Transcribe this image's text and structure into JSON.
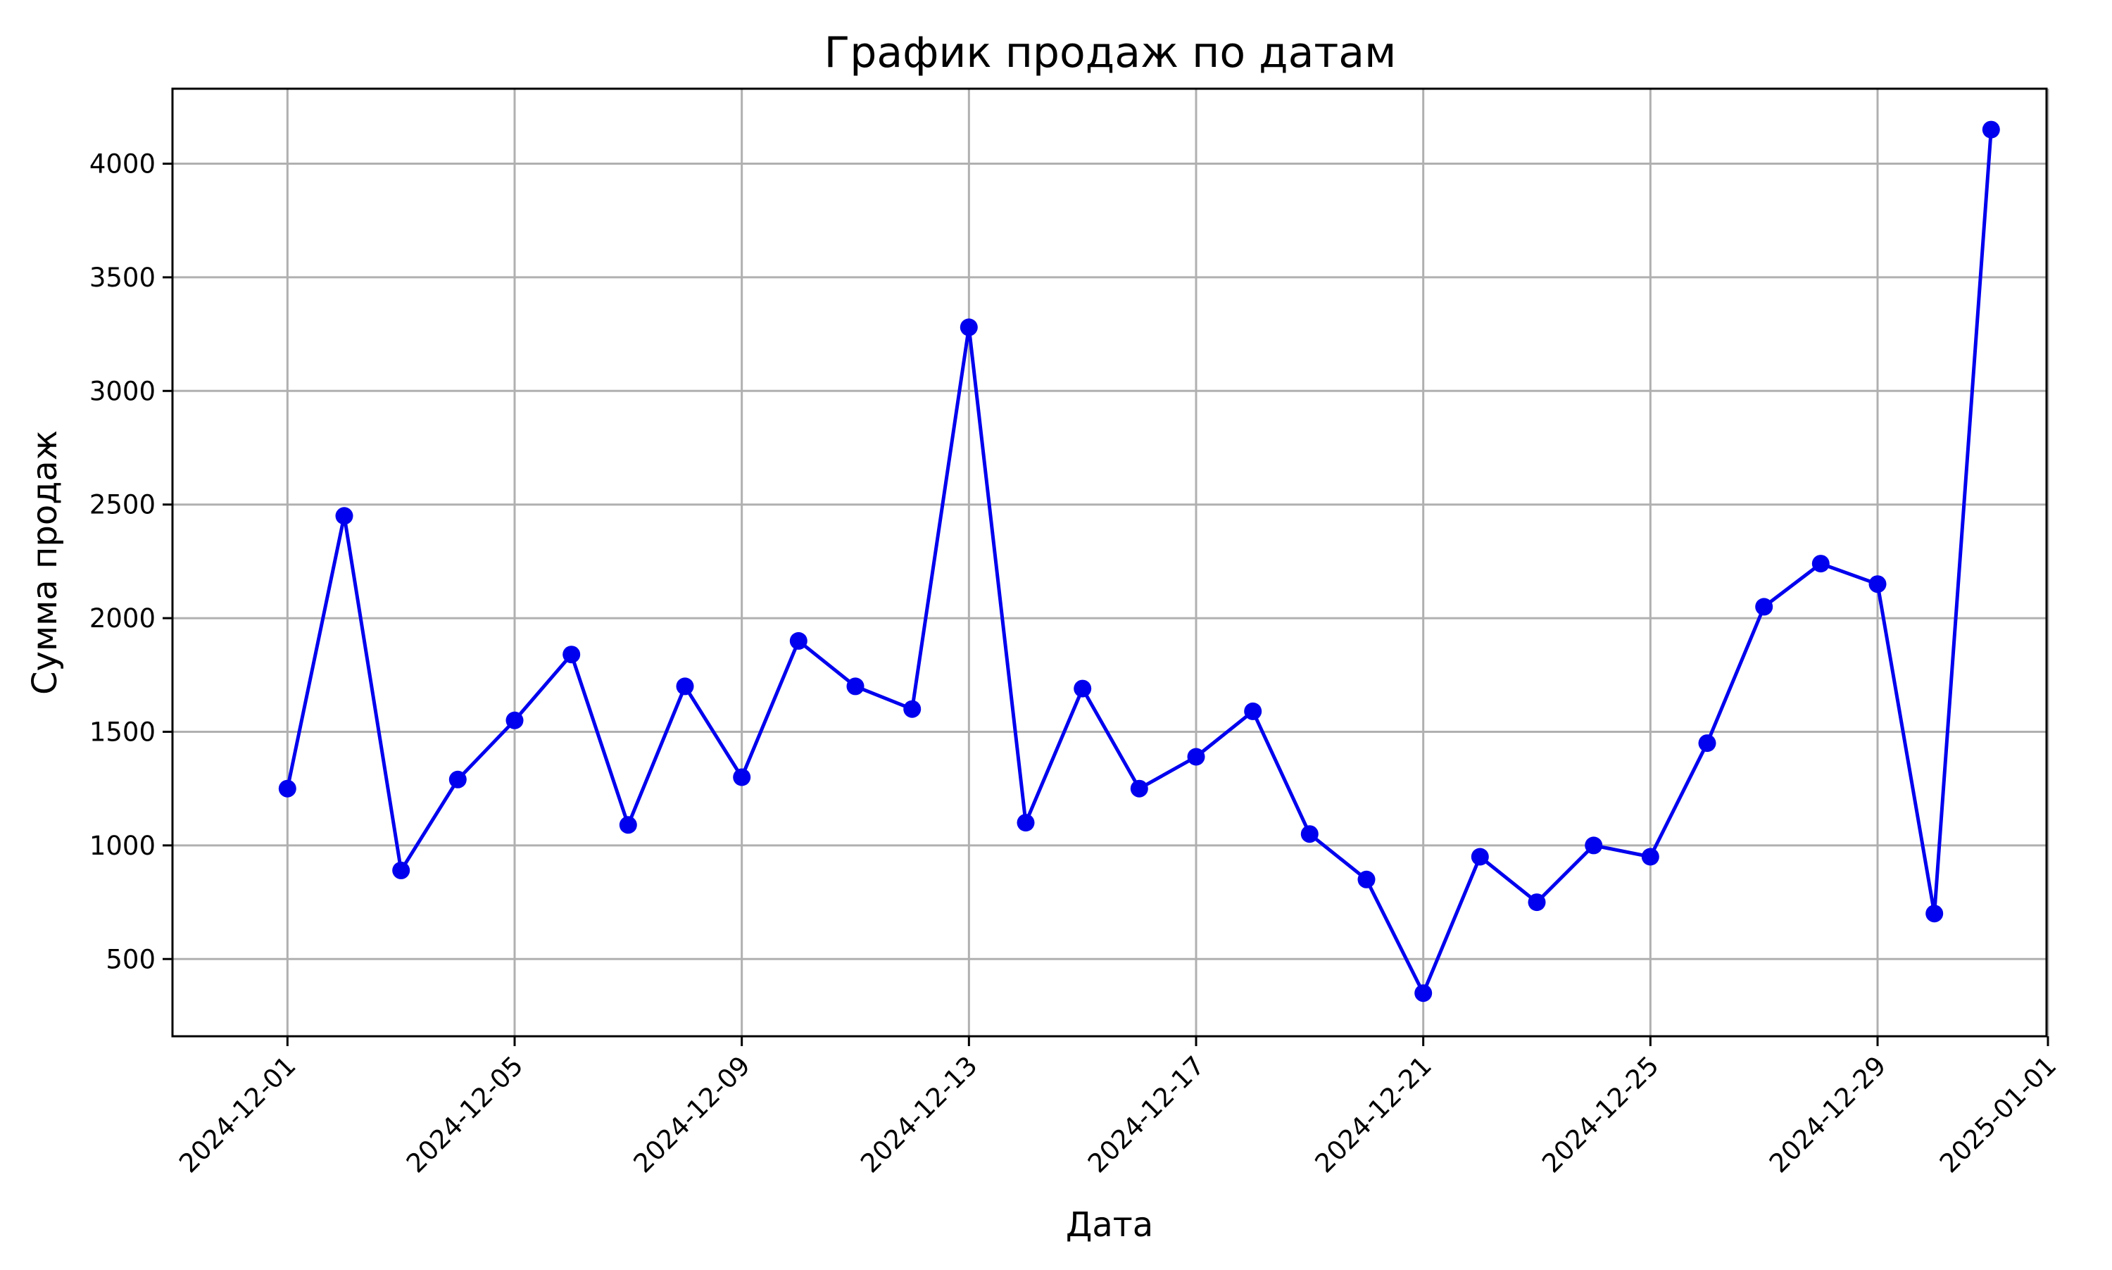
{
  "chart_data": {
    "type": "line",
    "title": "График продаж по датам",
    "xlabel": "Дата",
    "ylabel": "Сумма продаж",
    "x_ticks": [
      "2024-12-01",
      "2024-12-05",
      "2024-12-09",
      "2024-12-13",
      "2024-12-17",
      "2024-12-21",
      "2024-12-25",
      "2024-12-29",
      "2025-01-01"
    ],
    "y_ticks": [
      500,
      1000,
      1500,
      2000,
      2500,
      3000,
      3500,
      4000
    ],
    "ylim": [
      160,
      4330
    ],
    "xlim": [
      "2024-11-29",
      "2025-01-01"
    ],
    "grid": true,
    "marker": "circle",
    "series_color": "#0000ee",
    "series": [
      {
        "x": [
          "2024-12-01",
          "2024-12-02",
          "2024-12-03",
          "2024-12-04",
          "2024-12-05",
          "2024-12-06",
          "2024-12-07",
          "2024-12-08",
          "2024-12-09",
          "2024-12-10",
          "2024-12-11",
          "2024-12-12",
          "2024-12-13",
          "2024-12-14",
          "2024-12-15",
          "2024-12-16",
          "2024-12-17",
          "2024-12-18",
          "2024-12-19",
          "2024-12-20",
          "2024-12-21",
          "2024-12-22",
          "2024-12-23",
          "2024-12-24",
          "2024-12-25",
          "2024-12-26",
          "2024-12-27",
          "2024-12-28",
          "2024-12-29",
          "2024-12-30",
          "2024-12-31"
        ],
        "values": [
          1250,
          2450,
          890,
          1290,
          1550,
          1840,
          1090,
          1700,
          1300,
          1900,
          1700,
          1600,
          3280,
          1100,
          1690,
          1250,
          1390,
          1590,
          1050,
          850,
          350,
          950,
          750,
          1000,
          950,
          1450,
          2050,
          2240,
          2150,
          700,
          4150
        ]
      }
    ]
  }
}
